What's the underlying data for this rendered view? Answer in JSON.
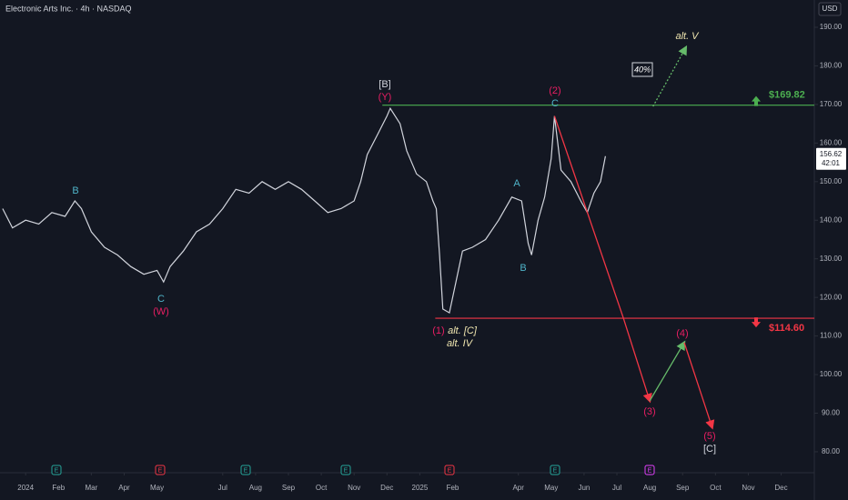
{
  "chart_data": {
    "type": "line",
    "title": "Electronic Arts Inc. · 4h · NASDAQ",
    "currency": "USD",
    "xlim": [
      -0.78,
      24.01
    ],
    "ylim": [
      78.1,
      197.07
    ],
    "xticks": [
      {
        "value": 0,
        "label": "2024"
      },
      {
        "value": 1,
        "label": "Feb"
      },
      {
        "value": 2,
        "label": "Mar"
      },
      {
        "value": 3,
        "label": "Apr"
      },
      {
        "value": 4,
        "label": "May"
      },
      {
        "value": 6,
        "label": "Jul"
      },
      {
        "value": 7,
        "label": "Aug"
      },
      {
        "value": 8,
        "label": "Sep"
      },
      {
        "value": 9,
        "label": "Oct"
      },
      {
        "value": 10,
        "label": "Nov"
      },
      {
        "value": 11,
        "label": "Dec"
      },
      {
        "value": 12,
        "label": "2025"
      },
      {
        "value": 13,
        "label": "Feb"
      },
      {
        "value": 15,
        "label": "Apr"
      },
      {
        "value": 16,
        "label": "May"
      },
      {
        "value": 17,
        "label": "Jun"
      },
      {
        "value": 18,
        "label": "Jul"
      },
      {
        "value": 19,
        "label": "Aug"
      },
      {
        "value": 20,
        "label": "Sep"
      },
      {
        "value": 21,
        "label": "Oct"
      },
      {
        "value": 22,
        "label": "Nov"
      },
      {
        "value": 23,
        "label": "Dec"
      }
    ],
    "yticks": [
      {
        "value": 80,
        "label": "80.00"
      },
      {
        "value": 90,
        "label": "90.00"
      },
      {
        "value": 100,
        "label": "100.00"
      },
      {
        "value": 110,
        "label": "110.00"
      },
      {
        "value": 120,
        "label": "120.00"
      },
      {
        "value": 130,
        "label": "130.00"
      },
      {
        "value": 140,
        "label": "140.00"
      },
      {
        "value": 150,
        "label": "150.00"
      },
      {
        "value": 160,
        "label": "160.00"
      },
      {
        "value": 170,
        "label": "170.00"
      },
      {
        "value": 180,
        "label": "180.00"
      },
      {
        "value": 190,
        "label": "190.00"
      }
    ],
    "grid": false,
    "series": [
      {
        "color": "#d1d4dc",
        "x": [
          -0.7,
          -0.4,
          0,
          0.4,
          0.8,
          1.2,
          1.5,
          1.7,
          2.0,
          2.4,
          2.8,
          3.2,
          3.6,
          4.0,
          4.2,
          4.4,
          4.8,
          5.2,
          5.6,
          6.0,
          6.4,
          6.8,
          7.2,
          7.6,
          8.0,
          8.4,
          8.8,
          9.2,
          9.6,
          10.0,
          10.2,
          10.4,
          10.7,
          11.0,
          11.1,
          11.4,
          11.6,
          11.9,
          12.2,
          12.4,
          12.5,
          12.6,
          12.7,
          12.9,
          13.0,
          13.3,
          13.6,
          14.0,
          14.4,
          14.8,
          15.1,
          15.3,
          15.4,
          15.6,
          15.8,
          16.0,
          16.1,
          16.3,
          16.6,
          16.9,
          17.1,
          17.3,
          17.5,
          17.65
        ],
        "values": [
          143,
          138,
          140,
          139,
          142,
          141,
          145,
          143,
          137,
          133,
          131,
          128,
          126,
          127,
          124,
          128,
          132,
          137,
          139,
          143,
          148,
          147,
          150,
          148,
          150,
          148,
          145,
          142,
          143,
          145,
          150,
          157,
          162,
          167,
          169,
          165,
          158,
          152,
          150,
          145,
          143,
          131,
          117,
          116,
          120,
          132,
          133,
          135,
          140,
          146,
          145,
          134,
          131,
          140,
          146,
          156,
          167,
          153,
          150,
          145,
          142,
          147,
          150,
          156.62
        ]
      }
    ],
    "last_price": {
      "value": 156.62,
      "label": "156.62"
    },
    "countdown": "42:01",
    "levels": [
      {
        "value": 169.82,
        "label": "$169.82",
        "color": "#4caf50",
        "from": 10.86
      },
      {
        "value": 114.6,
        "label": "$114.60",
        "color": "#f23645",
        "from": 12.47
      }
    ],
    "projections": [
      {
        "color": "#f23645",
        "x": [
          16.1,
          18.2,
          19.0
        ],
        "values": [
          167,
          114.6,
          93.2
        ]
      },
      {
        "color": "#66bb6a",
        "x": [
          19.0,
          20.05
        ],
        "values": [
          93.2,
          108.3
        ]
      },
      {
        "color": "#f23645",
        "x": [
          20.05,
          20.9
        ],
        "values": [
          108.3,
          86.3
        ]
      },
      {
        "color": "#66bb6a",
        "dashed": true,
        "x": [
          19.1,
          20.1
        ],
        "values": [
          169.5,
          184.8
        ]
      }
    ],
    "annotations": [
      "[B]",
      "(Y)",
      "(2)",
      "C",
      "alt. V",
      "40%",
      "B",
      "C",
      "(W)",
      "A",
      "B",
      "(1)",
      "alt. [C]",
      "alt. IV",
      "(3)",
      "(4)",
      "(5)",
      "[C]"
    ],
    "events": [
      "E",
      "E",
      "E",
      "E",
      "E",
      "E",
      "E"
    ]
  }
}
